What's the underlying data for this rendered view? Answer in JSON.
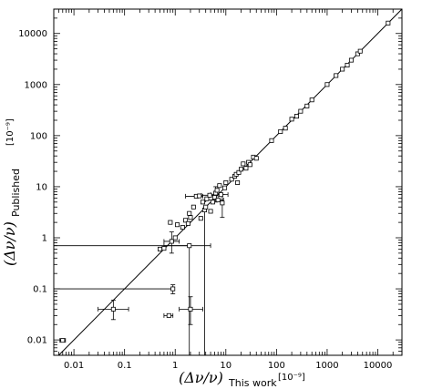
{
  "chart_data": {
    "type": "scatter",
    "title": "",
    "scale": {
      "x": "log",
      "y": "log"
    },
    "xlim": [
      0.004,
      30000
    ],
    "ylim": [
      0.005,
      30000
    ],
    "x_ticks": [
      "0.01",
      "0.1",
      "1",
      "10",
      "100",
      "1000",
      "10000"
    ],
    "y_ticks": [
      "0.01",
      "0.1",
      "1",
      "10",
      "100",
      "1000",
      "10000"
    ],
    "xlabel": {
      "main": "(Δν/ν)",
      "sub": "This work",
      "units": "[10⁻⁹]"
    },
    "ylabel": {
      "main": "(Δν/ν)",
      "sub": "Published",
      "units": "[10⁻⁹]"
    },
    "grid": false,
    "reference_line": "y = x",
    "points": [
      {
        "x": 0.006,
        "y": 0.0098,
        "xerr": [
          0.0053,
          0.0068
        ]
      },
      {
        "x": 0.06,
        "y": 0.04,
        "xerr": [
          0.03,
          0.12
        ],
        "yerr": [
          0.025,
          0.06
        ]
      },
      {
        "x": 0.75,
        "y": 0.03,
        "xerr": [
          0.6,
          0.9
        ]
      },
      {
        "x": 0.9,
        "y": 0.1,
        "yerr": [
          0.08,
          0.12
        ]
      },
      {
        "x": 2.0,
        "y": 0.04,
        "xerr": [
          1.2,
          3.5
        ],
        "yerr": [
          0.02,
          0.07
        ]
      },
      {
        "x": 0.5,
        "y": 0.6
      },
      {
        "x": 0.6,
        "y": 0.62
      },
      {
        "x": 0.85,
        "y": 0.85,
        "xerr": [
          0.6,
          1.2
        ],
        "yerr": [
          0.5,
          1.3
        ]
      },
      {
        "x": 0.8,
        "y": 2.0
      },
      {
        "x": 1.0,
        "y": 1.0
      },
      {
        "x": 1.1,
        "y": 1.8
      },
      {
        "x": 1.4,
        "y": 1.6
      },
      {
        "x": 1.6,
        "y": 2.2
      },
      {
        "x": 1.8,
        "y": 1.9
      },
      {
        "x": 1.9,
        "y": 0.7,
        "xerr": [
          0.6,
          5.0
        ],
        "vline": true
      },
      {
        "x": 1.9,
        "y": 3.0
      },
      {
        "x": 2.0,
        "y": 2.5
      },
      {
        "x": 2.3,
        "y": 4.0
      },
      {
        "x": 2.6,
        "y": 6.5,
        "xerr": [
          1.6,
          3.5
        ]
      },
      {
        "x": 3.0,
        "y": 6.6
      },
      {
        "x": 3.2,
        "y": 2.4
      },
      {
        "x": 3.5,
        "y": 5.0
      },
      {
        "x": 3.8,
        "y": 3.5,
        "vline": true
      },
      {
        "x": 4.0,
        "y": 4.0
      },
      {
        "x": 4.2,
        "y": 5.8
      },
      {
        "x": 4.8,
        "y": 6.8,
        "xerr": [
          3.3,
          7.0
        ]
      },
      {
        "x": 5.0,
        "y": 3.3
      },
      {
        "x": 5.5,
        "y": 5.0
      },
      {
        "x": 6.0,
        "y": 6.2
      },
      {
        "x": 6.3,
        "y": 7.5,
        "yerr": [
          5.0,
          10.0
        ]
      },
      {
        "x": 6.7,
        "y": 8.5
      },
      {
        "x": 7.0,
        "y": 5.5,
        "xerr": [
          4.0,
          9.0
        ]
      },
      {
        "x": 7.5,
        "y": 10.5
      },
      {
        "x": 8.0,
        "y": 7.0,
        "xerr": [
          5.0,
          11.0
        ]
      },
      {
        "x": 8.5,
        "y": 4.8,
        "yerr": [
          2.5,
          7.0
        ]
      },
      {
        "x": 9.5,
        "y": 9.5
      },
      {
        "x": 10,
        "y": 12
      },
      {
        "x": 13,
        "y": 14
      },
      {
        "x": 15,
        "y": 16
      },
      {
        "x": 16,
        "y": 17.5
      },
      {
        "x": 17,
        "y": 12
      },
      {
        "x": 18,
        "y": 19
      },
      {
        "x": 20,
        "y": 22
      },
      {
        "x": 22,
        "y": 28
      },
      {
        "x": 25,
        "y": 23
      },
      {
        "x": 28,
        "y": 30
      },
      {
        "x": 30,
        "y": 27
      },
      {
        "x": 35,
        "y": 38
      },
      {
        "x": 40,
        "y": 36
      },
      {
        "x": 80,
        "y": 80
      },
      {
        "x": 120,
        "y": 120
      },
      {
        "x": 150,
        "y": 140
      },
      {
        "x": 200,
        "y": 210
      },
      {
        "x": 250,
        "y": 240
      },
      {
        "x": 300,
        "y": 300
      },
      {
        "x": 400,
        "y": 380
      },
      {
        "x": 500,
        "y": 500
      },
      {
        "x": 1000,
        "y": 1000
      },
      {
        "x": 1500,
        "y": 1500
      },
      {
        "x": 2000,
        "y": 2000
      },
      {
        "x": 2500,
        "y": 2400
      },
      {
        "x": 3000,
        "y": 3000
      },
      {
        "x": 4000,
        "y": 4000
      },
      {
        "x": 4500,
        "y": 4500
      },
      {
        "x": 16000,
        "y": 16000
      }
    ],
    "horizontal_lines": [
      {
        "y": 0.7,
        "x_from": 0.004,
        "x_to": 1.9
      },
      {
        "y": 0.1,
        "x_from": 0.004,
        "x_to": 0.9
      }
    ]
  }
}
